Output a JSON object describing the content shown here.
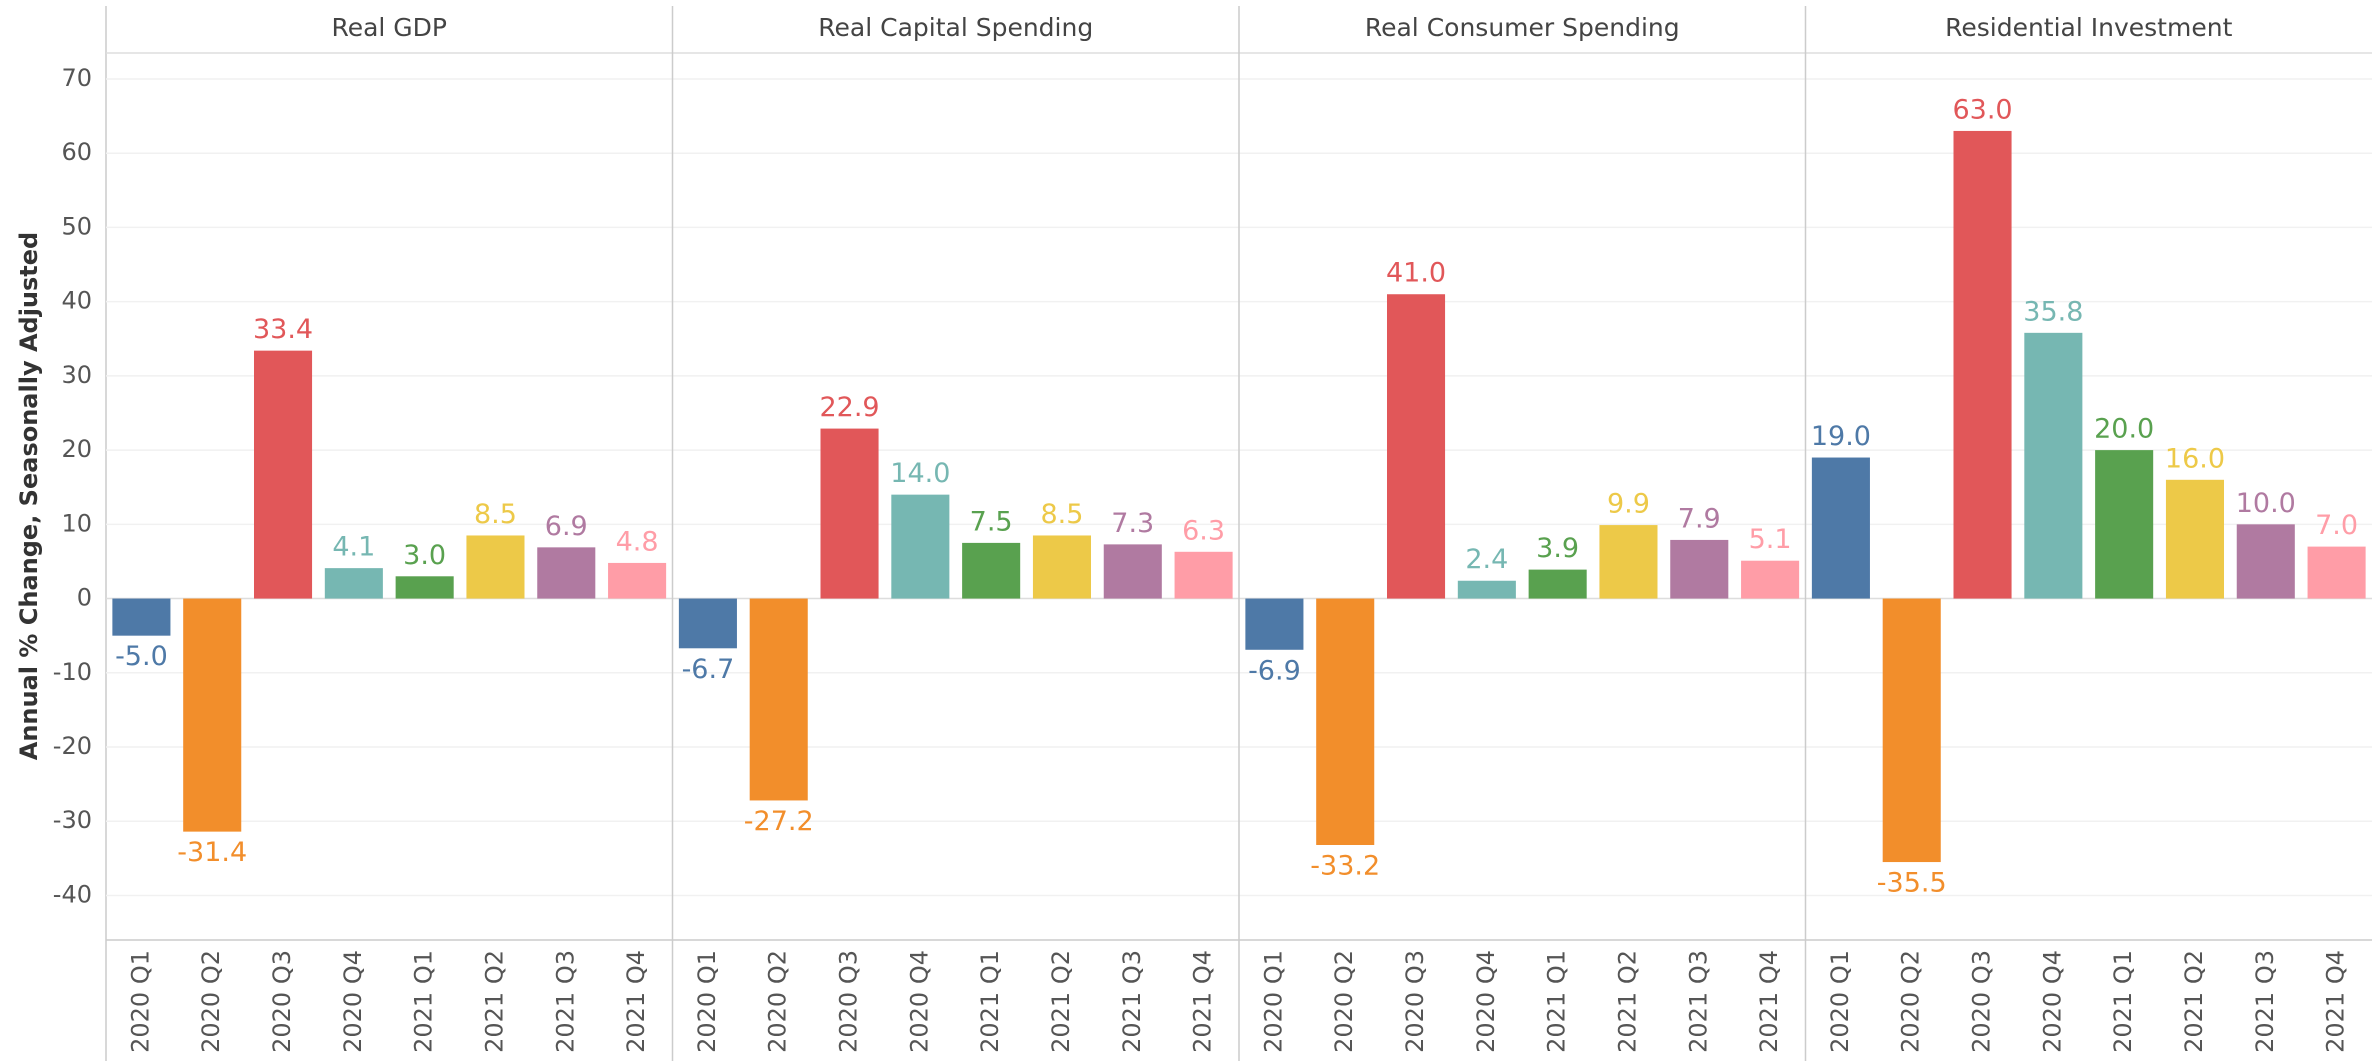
{
  "chart_data": {
    "type": "bar",
    "y_label": "Annual % Change, Seasonally Adjusted",
    "categories": [
      "2020 Q1",
      "2020 Q2",
      "2020 Q3",
      "2020 Q4",
      "2021 Q1",
      "2021 Q2",
      "2021 Q3",
      "2021 Q4"
    ],
    "colors": [
      "#4e79a7",
      "#f28e2b",
      "#e15759",
      "#76b7b2",
      "#59a14f",
      "#edc948",
      "#b07aa1",
      "#ff9da7"
    ],
    "ylim": [
      -46,
      73.5
    ],
    "yticks": [
      -40,
      -30,
      -20,
      -10,
      0,
      10,
      20,
      30,
      40,
      50,
      60,
      70
    ],
    "grid": true,
    "panels": [
      {
        "title": "Real GDP",
        "values": [
          -5,
          -31.4,
          33.4,
          4.1,
          3,
          8.5,
          6.9,
          4.8
        ],
        "value_labels": [
          "-5.0",
          "-31.4",
          "33.4",
          "4.1",
          "3.0",
          "8.5",
          "6.9",
          "4.8"
        ]
      },
      {
        "title": "Real Capital Spending",
        "values": [
          -6.7,
          -27.2,
          22.9,
          14,
          7.5,
          8.5,
          7.3,
          6.3
        ],
        "value_labels": [
          "-6.7",
          "-27.2",
          "22.9",
          "14.0",
          "7.5",
          "8.5",
          "7.3",
          "6.3"
        ]
      },
      {
        "title": "Real Consumer Spending",
        "values": [
          -6.9,
          -33.2,
          41,
          2.4,
          3.9,
          9.9,
          7.9,
          5.1
        ],
        "value_labels": [
          "-6.9",
          "-33.2",
          "41.0",
          "2.4",
          "3.9",
          "9.9",
          "7.9",
          "5.1"
        ]
      },
      {
        "title": "Residential Investment",
        "values": [
          19,
          -35.5,
          63,
          35.8,
          20,
          16,
          10,
          7
        ],
        "value_labels": [
          "19.0",
          "-35.5",
          "63.0",
          "35.8",
          "20.0",
          "16.0",
          "10.0",
          "7.0"
        ]
      }
    ]
  }
}
